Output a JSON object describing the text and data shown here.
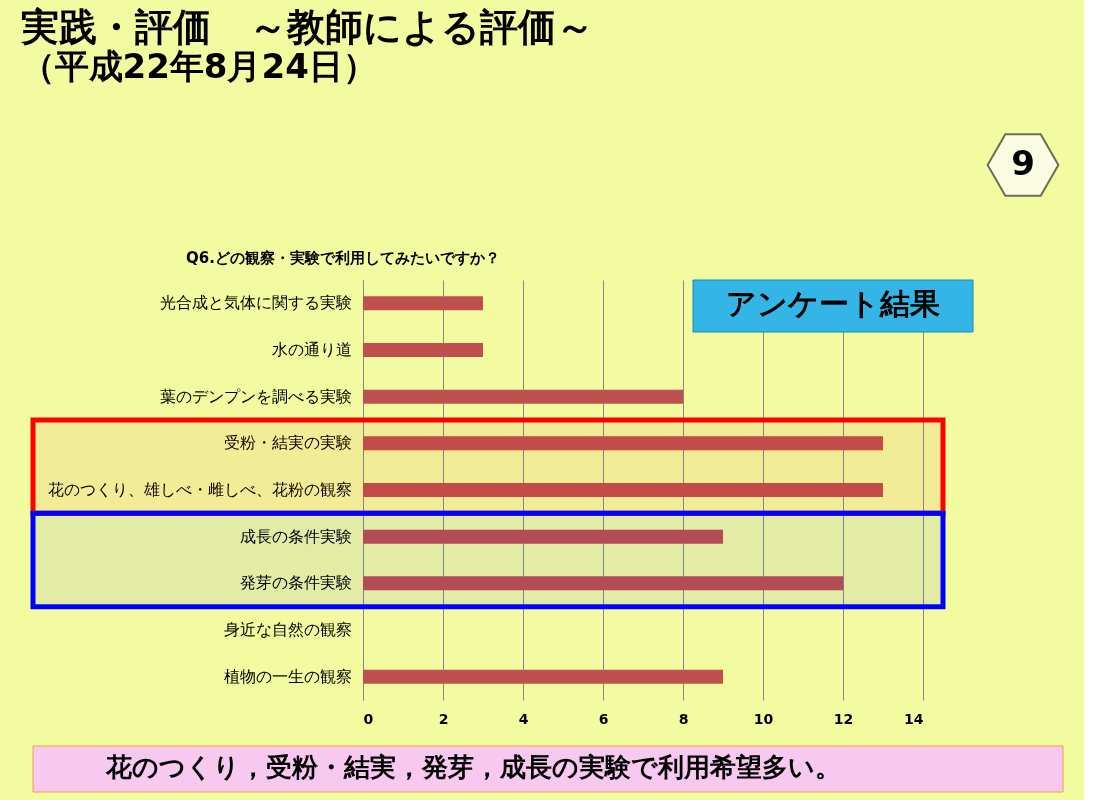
{
  "chart_data": {
    "type": "bar",
    "orientation": "horizontal",
    "title": "実践・評価　～教師による評価～",
    "subtitle": "（平成22年8月24日）",
    "categories": [
      "光合成と気体に関する実験",
      "水の通り道",
      "葉のデンプンを調べる実験",
      "受粉・結実の実験",
      "花のつくり、雄しべ・雌しべ、花粉の観察",
      "成長の条件実験",
      "発芽の条件実験",
      "身近な自然の観察",
      "植物の一生の観察"
    ],
    "values": [
      3,
      3,
      8,
      13,
      13,
      9,
      12,
      0,
      9
    ],
    "color": "#c0504d",
    "xlim": [
      0,
      14
    ],
    "xticks": [
      0,
      2,
      4,
      6,
      8,
      10,
      12,
      14
    ],
    "grid": "x",
    "bands": [
      {
        "axis": "y",
        "from": "受粉・結実の実験",
        "to": "花のつくり、雄しべ・雌しべ、花粉の観察",
        "color": "#ff0000"
      },
      {
        "axis": "y",
        "from": "成長の条件実験",
        "to": "発芽の条件実験",
        "color": "#0000ff"
      }
    ],
    "annotations": [
      "Q6.どの観察・実験で利用してみたいですか？",
      "9",
      "アンケート結果",
      "花のつくり，受粉・結実，発芽，成長の実験で利用希望多い。"
    ]
  }
}
